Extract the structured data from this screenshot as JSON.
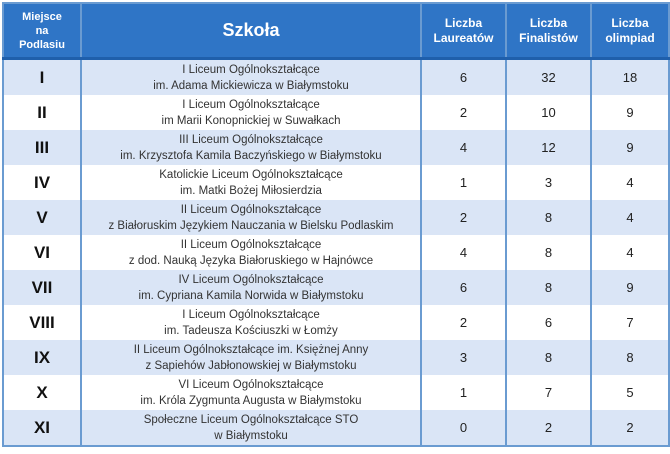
{
  "table": {
    "headers": {
      "place": "Miejsce na Podlasiu",
      "place_lines": [
        "Miejsce",
        "na",
        "Podlasiu"
      ],
      "school": "Szkoła",
      "laureates_lines": [
        "Liczba",
        "Laureatów"
      ],
      "finalists_lines": [
        "Liczba",
        "Finalistów"
      ],
      "olympiads_lines": [
        "Liczba",
        "olimpiad"
      ]
    },
    "rows": [
      {
        "place": "I",
        "school_line1": "I Liceum Ogólnokształcące",
        "school_line2": "im. Adama Mickiewicza w Białymstoku",
        "laureates": "6",
        "finalists": "32",
        "olympiads": "18"
      },
      {
        "place": "II",
        "school_line1": "I Liceum Ogólnokształcące",
        "school_line2": "im Marii Konopnickiej w Suwałkach",
        "laureates": "2",
        "finalists": "10",
        "olympiads": "9"
      },
      {
        "place": "III",
        "school_line1": "III Liceum Ogólnokształcące",
        "school_line2": "im. Krzysztofa Kamila Baczyńskiego w Białymstoku",
        "laureates": "4",
        "finalists": "12",
        "olympiads": "9"
      },
      {
        "place": "IV",
        "school_line1": "Katolickie Liceum Ogólnokształcące",
        "school_line2": "im. Matki Bożej Miłosierdzia",
        "laureates": "1",
        "finalists": "3",
        "olympiads": "4"
      },
      {
        "place": "V",
        "school_line1": "II Liceum Ogólnokształcące",
        "school_line2": "z Białoruskim Językiem Nauczania w Bielsku Podlaskim",
        "laureates": "2",
        "finalists": "8",
        "olympiads": "4"
      },
      {
        "place": "VI",
        "school_line1": "II Liceum Ogólnokształcące",
        "school_line2": "z dod. Nauką Języka Białoruskiego w Hajnówce",
        "laureates": "4",
        "finalists": "8",
        "olympiads": "4"
      },
      {
        "place": "VII",
        "school_line1": "IV Liceum Ogólnokształcące",
        "school_line2": "im. Cypriana Kamila Norwida w Białymstoku",
        "laureates": "6",
        "finalists": "8",
        "olympiads": "9"
      },
      {
        "place": "VIII",
        "school_line1": "I Liceum Ogólnokształcące",
        "school_line2": "im. Tadeusza Kościuszki w Łomży",
        "laureates": "2",
        "finalists": "6",
        "olympiads": "7"
      },
      {
        "place": "IX",
        "school_line1": "II Liceum Ogólnokształcące im. Księżnej Anny",
        "school_line2": "z Sapiehów Jabłonowskiej w Białymstoku",
        "laureates": "3",
        "finalists": "8",
        "olympiads": "8"
      },
      {
        "place": "X",
        "school_line1": "VI Liceum Ogólnokształcące",
        "school_line2": "im. Króla Zygmunta Augusta w Białymstoku",
        "laureates": "1",
        "finalists": "7",
        "olympiads": "5"
      },
      {
        "place": "XI",
        "school_line1": "Społeczne Liceum Ogólnokształcące STO",
        "school_line2": "w Białymstoku",
        "laureates": "0",
        "finalists": "2",
        "olympiads": "2"
      }
    ]
  },
  "colors": {
    "header_bg": "#2f75c6",
    "header_text": "#ffffff",
    "row_alt_bg": "#dae5f6",
    "row_bg": "#ffffff",
    "border": "#6a9bd1"
  }
}
